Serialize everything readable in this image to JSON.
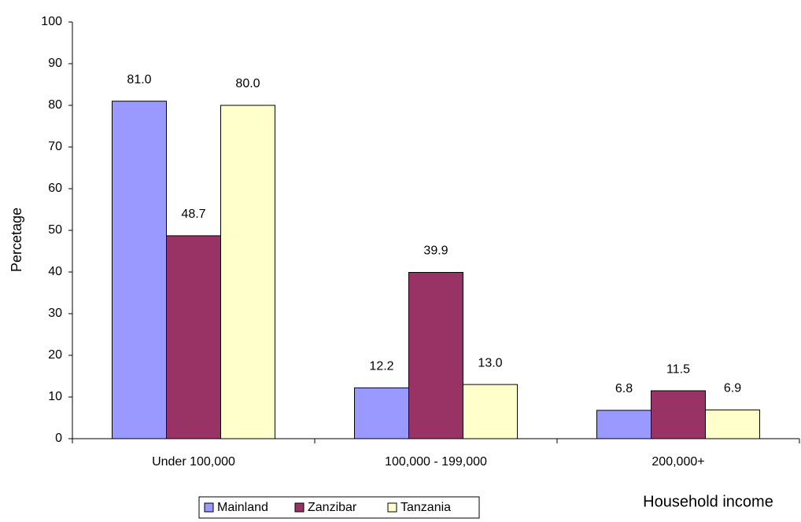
{
  "chart_data": {
    "type": "bar",
    "y_label": "Percetage",
    "x_label": "Household income",
    "categories": [
      "Under 100,000",
      "100,000 - 199,000",
      "200,000+"
    ],
    "series": [
      {
        "name": "Mainland",
        "color": "#9999ff",
        "values": [
          81.0,
          12.2,
          6.8
        ],
        "value_labels": [
          "81.0",
          "12.2",
          "6.8"
        ]
      },
      {
        "name": "Zanzibar",
        "color": "#993366",
        "values": [
          48.7,
          39.9,
          11.5
        ],
        "value_labels": [
          "48.7",
          "39.9",
          "11.5"
        ]
      },
      {
        "name": "Tanzania",
        "color": "#ffffcc",
        "values": [
          80.0,
          13.0,
          6.9
        ],
        "value_labels": [
          "80.0",
          "13.0",
          "6.9"
        ]
      }
    ],
    "ylim": [
      0,
      100
    ],
    "yticks": [
      0,
      10,
      20,
      30,
      40,
      50,
      60,
      70,
      80,
      90,
      100
    ],
    "grid": false,
    "legend": "bottom"
  }
}
